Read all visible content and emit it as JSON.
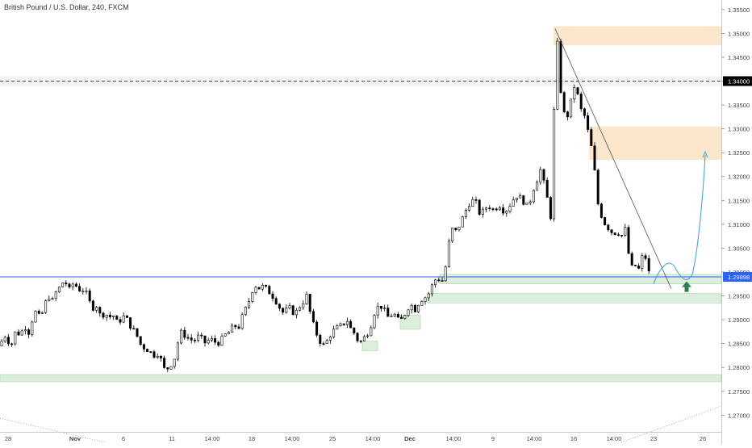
{
  "chart_data": {
    "type": "candlestick",
    "title": "British Pound / U.S. Dollar, 240, FXCM",
    "symbol": "GBP/USD",
    "timeframe": "240",
    "source": "FXCM",
    "ylim": [
      1.2665,
      1.357
    ],
    "y_ticks": [
      "1.35500",
      "1.35000",
      "1.34500",
      "1.34000",
      "1.33500",
      "1.33000",
      "1.32500",
      "1.32000",
      "1.31500",
      "1.31000",
      "1.30500",
      "1.30000",
      "1.29500",
      "1.29000",
      "1.28500",
      "1.28000",
      "1.27500",
      "1.27000"
    ],
    "x_tick_labels": [
      "28",
      "Nov",
      "6",
      "11",
      "14:00",
      "18",
      "14:00",
      "25",
      "14:00",
      "Dec",
      "14:00",
      "9",
      "14:00",
      "16",
      "14:00",
      "23",
      "26"
    ],
    "last_price": "1.29898",
    "marked_level": "1.34000",
    "grid": false,
    "legend": "none",
    "price_path": [
      [
        0,
        1.2845
      ],
      [
        5,
        1.287
      ],
      [
        10,
        1.2855
      ],
      [
        15,
        1.285
      ],
      [
        20,
        1.288
      ],
      [
        25,
        1.2865
      ],
      [
        30,
        1.289
      ],
      [
        35,
        1.287
      ],
      [
        40,
        1.29
      ],
      [
        45,
        1.292
      ],
      [
        50,
        1.29
      ],
      [
        55,
        1.293
      ],
      [
        60,
        1.295
      ],
      [
        65,
        1.294
      ],
      [
        70,
        1.296
      ],
      [
        75,
        1.297
      ],
      [
        80,
        1.2985
      ],
      [
        85,
        1.296
      ],
      [
        90,
        1.2975
      ],
      [
        95,
        1.297
      ],
      [
        100,
        1.296
      ],
      [
        105,
        1.2965
      ],
      [
        110,
        1.294
      ],
      [
        115,
        1.2925
      ],
      [
        120,
        1.293
      ],
      [
        125,
        1.2905
      ],
      [
        130,
        1.2915
      ],
      [
        135,
        1.2905
      ],
      [
        140,
        1.291
      ],
      [
        145,
        1.2895
      ],
      [
        150,
        1.29
      ],
      [
        155,
        1.291
      ],
      [
        160,
        1.289
      ],
      [
        165,
        1.288
      ],
      [
        170,
        1.2865
      ],
      [
        175,
        1.2845
      ],
      [
        180,
        1.284
      ],
      [
        185,
        1.2835
      ],
      [
        190,
        1.2825
      ],
      [
        195,
        1.283
      ],
      [
        200,
        1.2815
      ],
      [
        205,
        1.279
      ],
      [
        210,
        1.2805
      ],
      [
        215,
        1.281
      ],
      [
        220,
        1.285
      ],
      [
        225,
        1.2875
      ],
      [
        230,
        1.2865
      ],
      [
        235,
        1.286
      ],
      [
        240,
        1.2855
      ],
      [
        245,
        1.2865
      ],
      [
        250,
        1.286
      ],
      [
        255,
        1.285
      ],
      [
        260,
        1.286
      ],
      [
        265,
        1.2855
      ],
      [
        270,
        1.285
      ],
      [
        275,
        1.286
      ],
      [
        280,
        1.287
      ],
      [
        285,
        1.2875
      ],
      [
        290,
        1.289
      ],
      [
        295,
        1.288
      ],
      [
        300,
        1.2905
      ],
      [
        305,
        1.2925
      ],
      [
        310,
        1.2945
      ],
      [
        315,
        1.2975
      ],
      [
        320,
        1.2965
      ],
      [
        325,
        1.297
      ],
      [
        330,
        1.2965
      ],
      [
        335,
        1.2955
      ],
      [
        340,
        1.2945
      ],
      [
        345,
        1.293
      ],
      [
        350,
        1.2915
      ],
      [
        355,
        1.292
      ],
      [
        360,
        1.2925
      ],
      [
        365,
        1.291
      ],
      [
        370,
        1.2925
      ],
      [
        375,
        1.2935
      ],
      [
        380,
        1.295
      ],
      [
        385,
        1.291
      ],
      [
        390,
        1.288
      ],
      [
        395,
        1.286
      ],
      [
        400,
        1.2845
      ],
      [
        405,
        1.2855
      ],
      [
        410,
        1.287
      ],
      [
        415,
        1.288
      ],
      [
        420,
        1.2885
      ],
      [
        425,
        1.289
      ],
      [
        430,
        1.29
      ],
      [
        435,
        1.288
      ],
      [
        440,
        1.287
      ],
      [
        445,
        1.285
      ],
      [
        450,
        1.286
      ],
      [
        455,
        1.287
      ],
      [
        460,
        1.289
      ],
      [
        465,
        1.292
      ],
      [
        470,
        1.293
      ],
      [
        475,
        1.2925
      ],
      [
        480,
        1.2905
      ],
      [
        485,
        1.291
      ],
      [
        490,
        1.291
      ],
      [
        495,
        1.2895
      ],
      [
        500,
        1.2905
      ],
      [
        505,
        1.2925
      ],
      [
        510,
        1.293
      ],
      [
        515,
        1.292
      ],
      [
        520,
        1.294
      ],
      [
        525,
        1.2945
      ],
      [
        530,
        1.295
      ],
      [
        535,
        1.297
      ],
      [
        540,
        1.2985
      ],
      [
        545,
        1.2985
      ],
      [
        550,
        1.298
      ],
      [
        555,
        1.305
      ],
      [
        560,
        1.309
      ],
      [
        565,
        1.3085
      ],
      [
        570,
        1.31
      ],
      [
        575,
        1.312
      ],
      [
        580,
        1.314
      ],
      [
        585,
        1.315
      ],
      [
        590,
        1.3145
      ],
      [
        595,
        1.312
      ],
      [
        600,
        1.313
      ],
      [
        605,
        1.314
      ],
      [
        610,
        1.313
      ],
      [
        615,
        1.3135
      ],
      [
        620,
        1.314
      ],
      [
        625,
        1.3125
      ],
      [
        630,
        1.3135
      ],
      [
        635,
        1.315
      ],
      [
        640,
        1.316
      ],
      [
        645,
        1.3155
      ],
      [
        650,
        1.3145
      ],
      [
        655,
        1.3135
      ],
      [
        660,
        1.317
      ],
      [
        665,
        1.319
      ],
      [
        670,
        1.3215
      ],
      [
        675,
        1.318
      ],
      [
        680,
        1.314
      ],
      [
        683,
        1.311
      ],
      [
        686,
        1.33
      ],
      [
        689,
        1.349
      ],
      [
        692,
        1.347
      ],
      [
        695,
        1.338
      ],
      [
        698,
        1.334
      ],
      [
        701,
        1.332
      ],
      [
        704,
        1.333
      ],
      [
        708,
        1.336
      ],
      [
        712,
        1.339
      ],
      [
        716,
        1.337
      ],
      [
        720,
        1.334
      ],
      [
        724,
        1.333
      ],
      [
        728,
        1.33
      ],
      [
        732,
        1.327
      ],
      [
        736,
        1.323
      ],
      [
        740,
        1.315
      ],
      [
        745,
        1.312
      ],
      [
        750,
        1.31
      ],
      [
        755,
        1.309
      ],
      [
        760,
        1.308
      ],
      [
        765,
        1.3085
      ],
      [
        770,
        1.3075
      ],
      [
        775,
        1.309
      ],
      [
        778,
        1.305
      ],
      [
        782,
        1.3005
      ],
      [
        786,
        1.302
      ],
      [
        790,
        1.3
      ],
      [
        794,
        1.3015
      ],
      [
        798,
        1.305
      ],
      [
        802,
        1.301
      ],
      [
        806,
        1.299
      ]
    ],
    "zones": [
      {
        "type": "supply",
        "price_from": 1.3475,
        "price_to": 1.3515
      },
      {
        "type": "supply",
        "price_from": 1.3235,
        "price_to": 1.3305
      },
      {
        "type": "demand",
        "price_from": 1.2975,
        "price_to": 1.2995
      },
      {
        "type": "demand",
        "price_from": 1.2935,
        "price_to": 1.2955
      },
      {
        "type": "demand",
        "price_from": 1.277,
        "price_to": 1.2785
      }
    ],
    "colors": {
      "up": "#ffffff",
      "down": "#000000",
      "wick": "#000000",
      "supply_zone": "#fde7cc",
      "demand_zone": "#dcefdc",
      "demand_border": "#a8d3a8",
      "last_price_line": "#2962ff",
      "projection": "#4aa3df",
      "arrow": "#2e7d4f"
    }
  }
}
